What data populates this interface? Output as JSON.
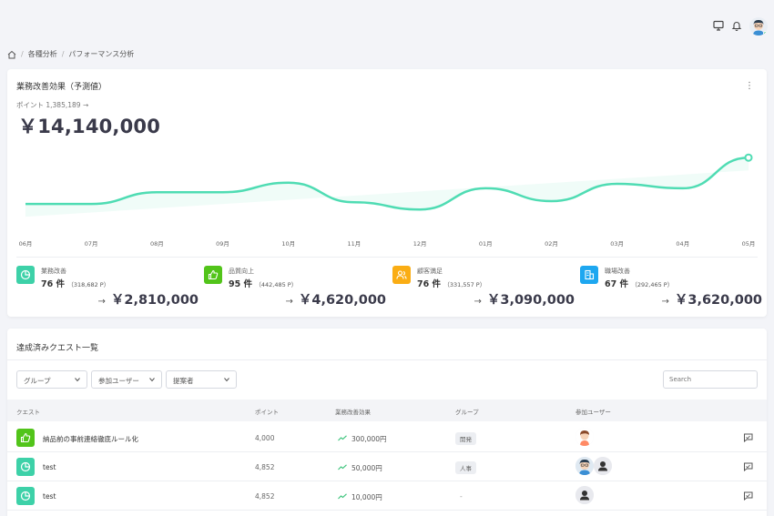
{
  "header": {
    "icons": [
      "monitor-icon",
      "bell-icon",
      "user-avatar"
    ]
  },
  "breadcrumb": {
    "items": [
      "各種分析",
      "パフォーマンス分析"
    ],
    "separator": "/"
  },
  "summary": {
    "title": "業務改善効果（予測値）",
    "points_label": "ポイント 1,385,189 →",
    "total": "￥14,140,000"
  },
  "chart_data": {
    "type": "area",
    "categories": [
      "06月",
      "07月",
      "08月",
      "09月",
      "10月",
      "11月",
      "12月",
      "01月",
      "02月",
      "03月",
      "04月",
      "05月"
    ],
    "series": [
      {
        "values": [
          52,
          52,
          73,
          73,
          90,
          55,
          42,
          80,
          57,
          88,
          80,
          135
        ]
      }
    ],
    "ylim": [
      0,
      150
    ],
    "grid": false,
    "colors": {
      "line": "#4fdcb3",
      "fill": "#e6faf3"
    }
  },
  "stats": [
    {
      "name": "業務改善",
      "count": "76 件",
      "points": "（318,682 P）",
      "amount": "￥2,810,000",
      "arrow": "→",
      "color": "#3dd1a8",
      "icon": "pie-chart-icon"
    },
    {
      "name": "品質向上",
      "count": "95 件",
      "points": "（442,485 P）",
      "amount": "￥4,620,000",
      "arrow": "→",
      "color": "#52c41a",
      "icon": "thumbs-up-icon"
    },
    {
      "name": "顧客満足",
      "count": "76 件",
      "points": "（331,557 P）",
      "amount": "￥3,090,000",
      "arrow": "→",
      "color": "#faad14",
      "icon": "users-icon"
    },
    {
      "name": "職場改善",
      "count": "67 件",
      "points": "（292,465 P）",
      "amount": "￥3,620,000",
      "arrow": "→",
      "color": "#1ea7f0",
      "icon": "building-icon"
    }
  ],
  "quests": {
    "title": "達成済みクエスト一覧",
    "filters": [
      "グループ",
      "参加ユーザー",
      "提案者"
    ],
    "search_placeholder": "Search",
    "columns": [
      "クエスト",
      "ポイント",
      "業務改善効果",
      "グループ",
      "参加ユーザー"
    ],
    "rows": [
      {
        "name": "納品前の事前連絡徹底ルール化",
        "points": "4,000",
        "effect": "300,000円",
        "group": "開発",
        "icon": "thumbs-up-icon",
        "color": "#52c41a"
      },
      {
        "name": "test",
        "points": "4,852",
        "effect": "50,000円",
        "group": "人事",
        "icon": "pie-chart-icon",
        "color": "#3dd1a8"
      },
      {
        "name": "test",
        "points": "4,852",
        "effect": "10,000円",
        "group": "-",
        "icon": "pie-chart-icon",
        "color": "#3dd1a8"
      }
    ]
  }
}
